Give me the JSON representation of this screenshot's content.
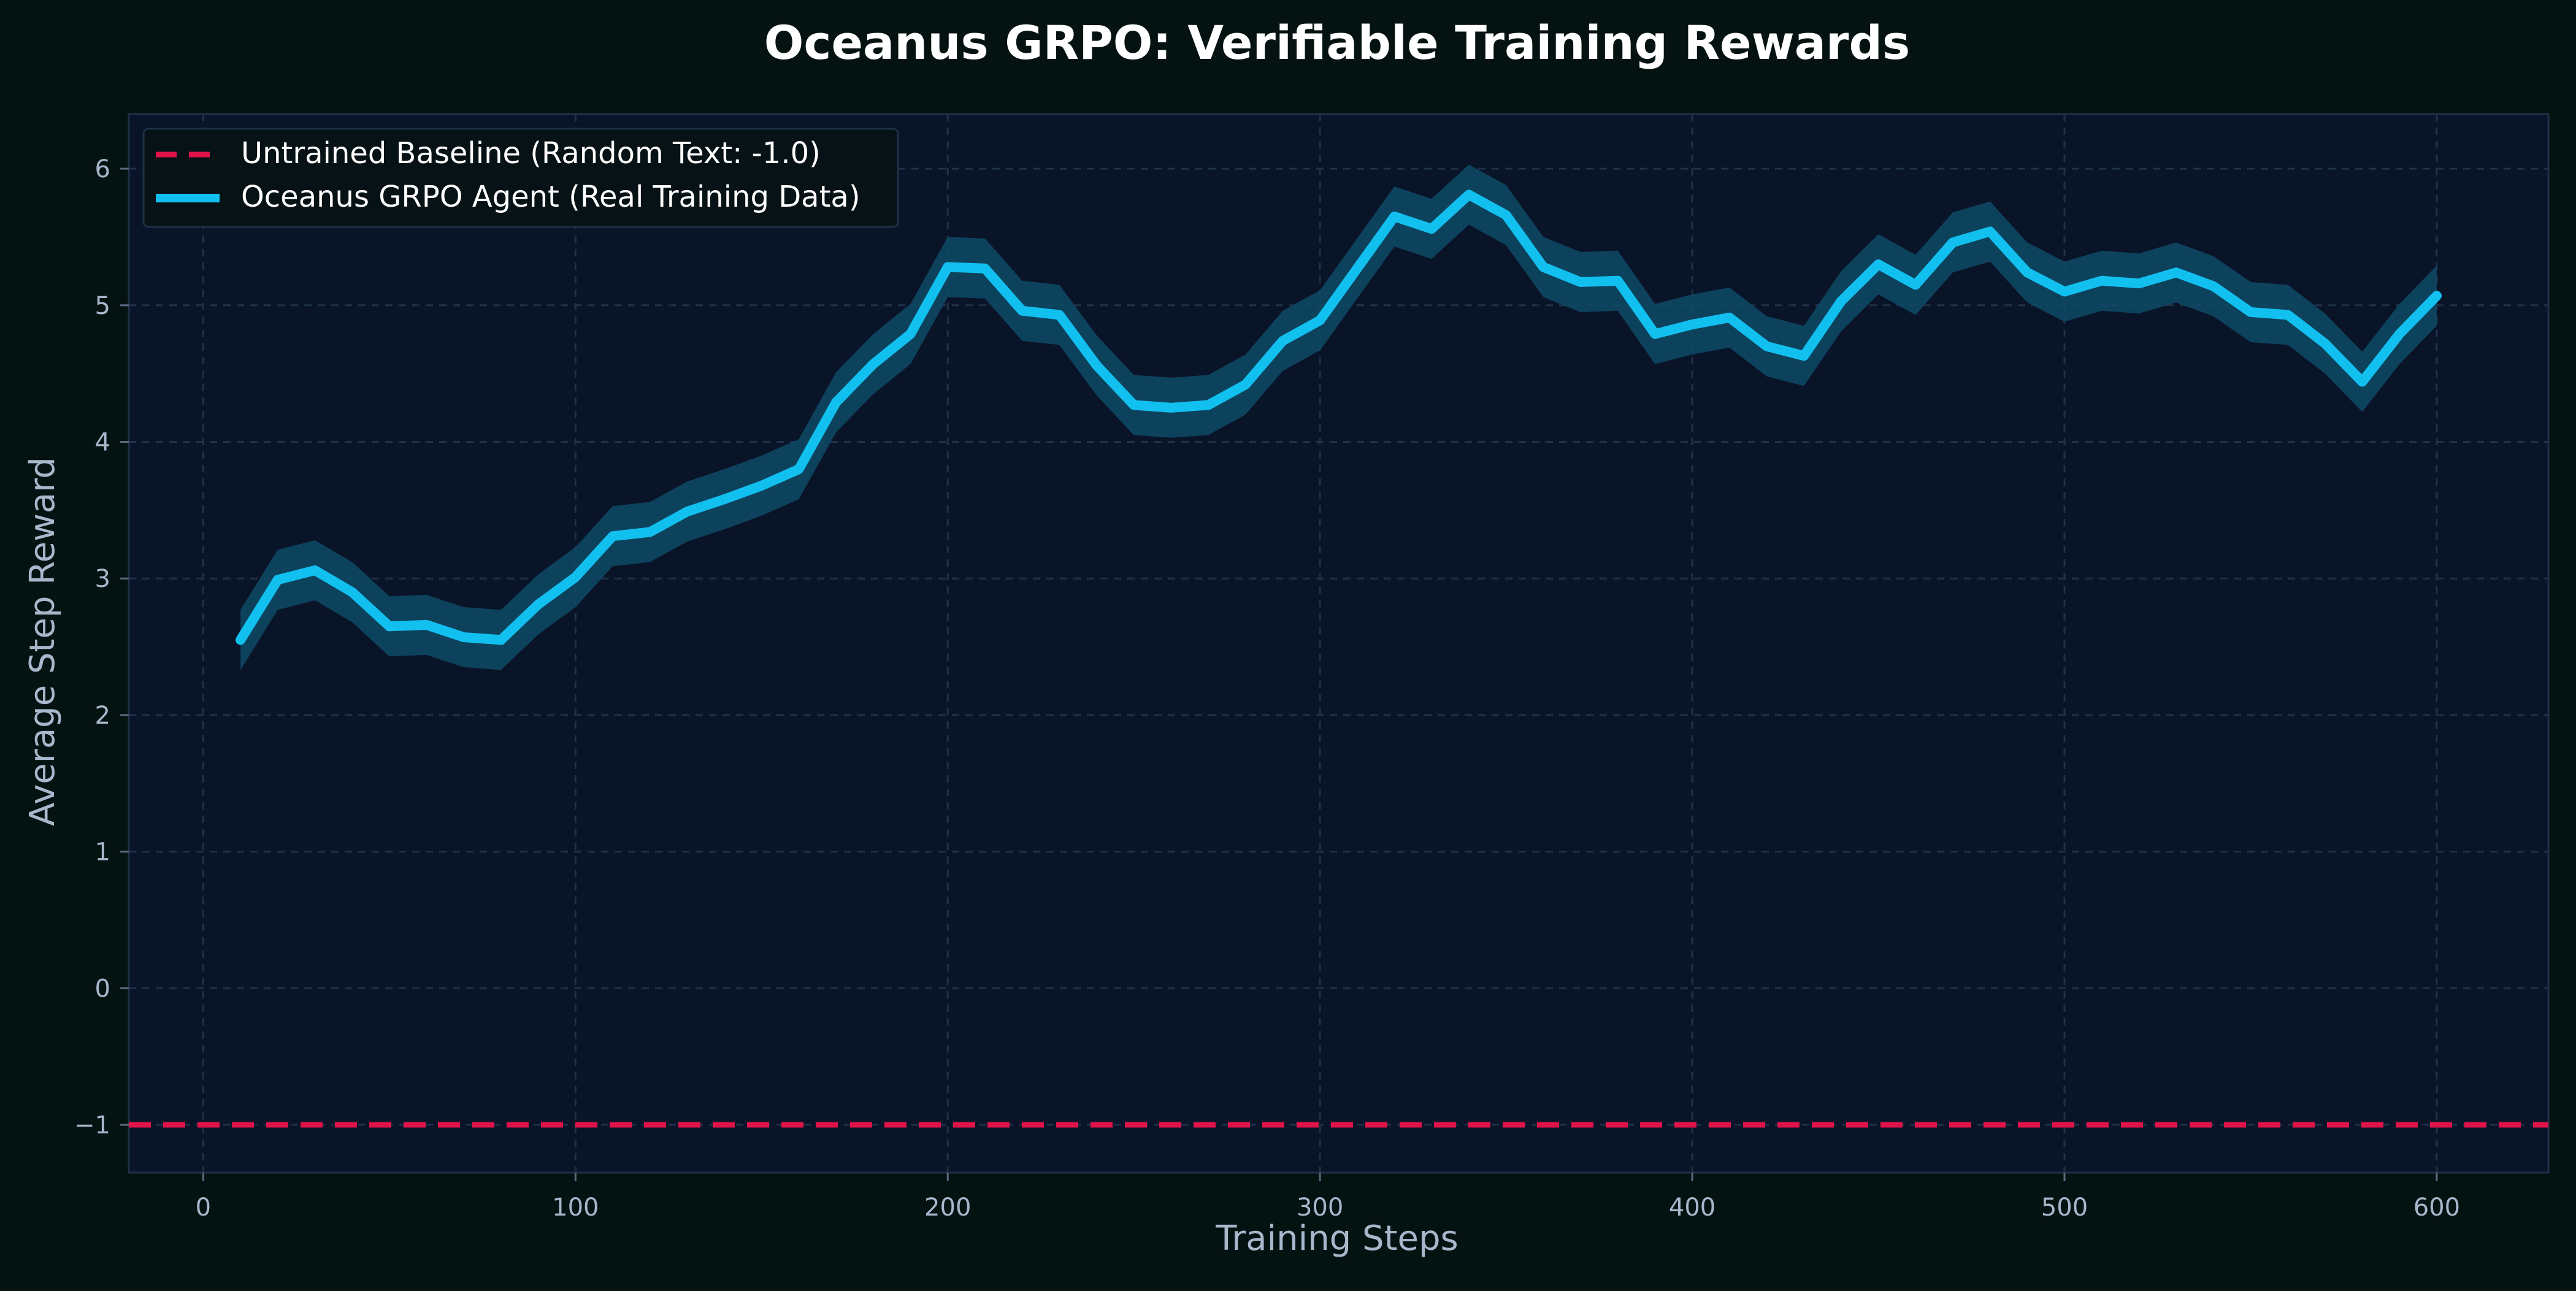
{
  "chart_data": {
    "type": "line",
    "title": "Oceanus GRPO: Verifiable Training Rewards",
    "xlabel": "Training Steps",
    "ylabel": "Average Step Reward",
    "xlim": [
      -20,
      630
    ],
    "ylim": [
      -1.35,
      6.4
    ],
    "xticks": [
      0,
      100,
      200,
      300,
      400,
      500,
      600
    ],
    "yticks": [
      -1,
      0,
      1,
      2,
      3,
      4,
      5,
      6
    ],
    "xtick_labels": [
      "0",
      "100",
      "200",
      "300",
      "400",
      "500",
      "600"
    ],
    "ytick_labels": [
      "−1",
      "0",
      "1",
      "2",
      "3",
      "4",
      "5",
      "6"
    ],
    "grid": true,
    "legend_position": "top-left",
    "baseline": {
      "name": "Untrained Baseline (Random Text: -1.0)",
      "value": -1.0,
      "color": "#e0134a",
      "style": "dashed"
    },
    "series": [
      {
        "name": "Oceanus GRPO Agent (Real Training Data)",
        "color": "#12c0f0",
        "band_color": "#0e4a66",
        "band_half_width": 0.22,
        "x": [
          10,
          20,
          30,
          40,
          50,
          60,
          70,
          80,
          90,
          100,
          110,
          120,
          130,
          140,
          150,
          160,
          170,
          180,
          190,
          200,
          210,
          220,
          230,
          240,
          250,
          260,
          270,
          280,
          290,
          300,
          310,
          320,
          330,
          340,
          350,
          360,
          370,
          380,
          390,
          400,
          410,
          420,
          430,
          440,
          450,
          460,
          470,
          480,
          490,
          500,
          510,
          520,
          530,
          540,
          550,
          560,
          570,
          580,
          590,
          600
        ],
        "y": [
          2.55,
          2.99,
          3.06,
          2.9,
          2.65,
          2.66,
          2.57,
          2.55,
          2.81,
          3.01,
          3.31,
          3.34,
          3.49,
          3.58,
          3.68,
          3.8,
          4.29,
          4.57,
          4.79,
          5.28,
          5.27,
          4.96,
          4.93,
          4.56,
          4.27,
          4.25,
          4.27,
          4.42,
          4.74,
          4.89,
          5.27,
          5.65,
          5.56,
          5.81,
          5.66,
          5.28,
          5.17,
          5.18,
          4.79,
          4.86,
          4.91,
          4.7,
          4.63,
          5.03,
          5.3,
          5.15,
          5.46,
          5.54,
          5.24,
          5.1,
          5.18,
          5.16,
          5.24,
          5.14,
          4.95,
          4.93,
          4.72,
          4.44,
          4.79,
          5.07
        ]
      }
    ]
  }
}
